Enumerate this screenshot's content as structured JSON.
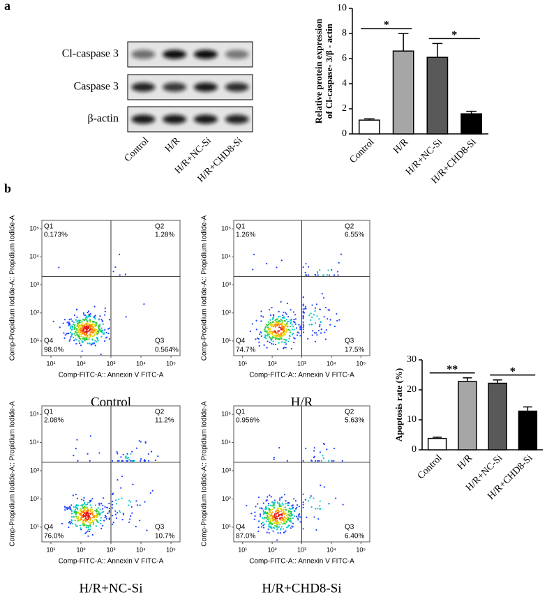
{
  "panels": [
    "a",
    "b"
  ],
  "western_blot": {
    "bands": [
      "Cl-caspase 3",
      "Caspase 3",
      "β-actin"
    ],
    "lanes": [
      "Control",
      "H/R",
      "H/R+NC-Si",
      "H/R+CHD8-Si"
    ]
  },
  "chart_data": [
    {
      "type": "bar",
      "ylabel": [
        "Relative protein expression",
        "of Cl-caspase- 3/β - actin"
      ],
      "categories": [
        "Control",
        "H/R",
        "H/R+NC-Si",
        "H/R+CHD8-Si"
      ],
      "values": [
        1.1,
        6.6,
        6.1,
        1.6
      ],
      "errors": [
        0.1,
        1.4,
        1.1,
        0.2
      ],
      "colors": [
        "#ffffff",
        "#a6a6a6",
        "#595959",
        "#000000"
      ],
      "ylim": [
        0,
        10
      ],
      "yticks": [
        0,
        2,
        4,
        6,
        8,
        10
      ],
      "significance": [
        {
          "between": [
            "Control",
            "H/R"
          ],
          "label": "*"
        },
        {
          "between": [
            "H/R+NC-Si",
            "H/R+CHD8-Si"
          ],
          "label": "*"
        }
      ]
    },
    {
      "type": "bar",
      "ylabel": [
        "Apoptosis rate (%)"
      ],
      "categories": [
        "Control",
        "H/R",
        "H/R+NC-Si",
        "H/R+CHD8-Si"
      ],
      "values": [
        3.8,
        22.8,
        22.2,
        12.9
      ],
      "errors": [
        0.4,
        1.2,
        1.1,
        1.4
      ],
      "colors": [
        "#ffffff",
        "#a6a6a6",
        "#595959",
        "#000000"
      ],
      "ylim": [
        0,
        30
      ],
      "yticks": [
        0,
        10,
        20,
        30
      ],
      "significance": [
        {
          "between": [
            "Control",
            "H/R"
          ],
          "label": "**"
        },
        {
          "between": [
            "H/R+NC-Si",
            "H/R+CHD8-Si"
          ],
          "label": "*"
        }
      ]
    },
    {
      "type": "flow",
      "title": "Control",
      "xlabel": "Comp-FITC-A:: Annexin V FITC-A",
      "ylabel": "Comp-Propidium Iodide-A:: Propidium Iodide-A",
      "xscale": "log",
      "yscale": "log",
      "xlim": [
        5,
        200000
      ],
      "ylim": [
        3,
        200000
      ],
      "xticks": [
        {
          "value": 10,
          "label": "10¹"
        },
        {
          "value": 100,
          "label": "10²"
        },
        {
          "value": 1000,
          "label": "10³"
        },
        {
          "value": 10000,
          "label": "10⁴"
        },
        {
          "value": 100000,
          "label": "10⁵"
        }
      ],
      "yticks": [
        {
          "value": 10,
          "label": "10¹"
        },
        {
          "value": 100,
          "label": "10²"
        },
        {
          "value": 1000,
          "label": "10³"
        },
        {
          "value": 10000,
          "label": "10⁴"
        },
        {
          "value": 100000,
          "label": "10⁵"
        }
      ],
      "gates": {
        "x": 1000,
        "y": 2000
      },
      "quadrants": [
        "Q1",
        "Q2",
        "Q3",
        "Q4"
      ],
      "quadrant_values": [
        0.173,
        1.28,
        0.564,
        98.0
      ],
      "quadrant_labels": [
        "0.173%",
        "1.28%",
        "0.564%",
        "98.0%"
      ]
    },
    {
      "type": "flow",
      "title": "H/R",
      "xlabel": "Comp-FITC-A:: Annexin V FITC-A",
      "ylabel": "Comp-Propidium Iodide-A:: Propidium Iodide-A",
      "xscale": "log",
      "yscale": "log",
      "xlim": [
        5,
        200000
      ],
      "ylim": [
        3,
        200000
      ],
      "xticks": [
        {
          "value": 10,
          "label": "10¹"
        },
        {
          "value": 100,
          "label": "10²"
        },
        {
          "value": 1000,
          "label": "10³"
        },
        {
          "value": 10000,
          "label": "10⁴"
        },
        {
          "value": 100000,
          "label": "10⁵"
        }
      ],
      "yticks": [
        {
          "value": 10,
          "label": "10¹"
        },
        {
          "value": 100,
          "label": "10²"
        },
        {
          "value": 1000,
          "label": "10³"
        },
        {
          "value": 10000,
          "label": "10⁴"
        },
        {
          "value": 100000,
          "label": "10⁵"
        }
      ],
      "gates": {
        "x": 1000,
        "y": 2000
      },
      "quadrants": [
        "Q1",
        "Q2",
        "Q3",
        "Q4"
      ],
      "quadrant_values": [
        1.26,
        6.55,
        17.5,
        74.7
      ],
      "quadrant_labels": [
        "1.26%",
        "6.55%",
        "17.5%",
        "74.7%"
      ]
    },
    {
      "type": "flow",
      "title": "H/R+NC-Si",
      "xlabel": "Comp-FITC-A:: Annexin V FITC-A",
      "ylabel": "Comp-Propidium Iodide-A:: Propidium Iodide-A",
      "xscale": "log",
      "yscale": "log",
      "xlim": [
        5,
        200000
      ],
      "ylim": [
        3,
        200000
      ],
      "xticks": [
        {
          "value": 10,
          "label": "10¹"
        },
        {
          "value": 100,
          "label": "10²"
        },
        {
          "value": 1000,
          "label": "10³"
        },
        {
          "value": 10000,
          "label": "10⁴"
        },
        {
          "value": 100000,
          "label": "10⁵"
        }
      ],
      "yticks": [
        {
          "value": 10,
          "label": "10¹"
        },
        {
          "value": 100,
          "label": "10²"
        },
        {
          "value": 1000,
          "label": "10³"
        },
        {
          "value": 10000,
          "label": "10⁴"
        },
        {
          "value": 100000,
          "label": "10⁵"
        }
      ],
      "gates": {
        "x": 1000,
        "y": 2000
      },
      "quadrants": [
        "Q1",
        "Q2",
        "Q3",
        "Q4"
      ],
      "quadrant_values": [
        2.08,
        11.2,
        10.7,
        76.0
      ],
      "quadrant_labels": [
        "2.08%",
        "11.2%",
        "10.7%",
        "76.0%"
      ]
    },
    {
      "type": "flow",
      "title": "H/R+CHD8-Si",
      "xlabel": "Comp-FITC-A:: Annexin V FITC-A",
      "ylabel": "Comp-Propidium Iodide-A:: Propidium Iodide-A",
      "xscale": "log",
      "yscale": "log",
      "xlim": [
        5,
        200000
      ],
      "ylim": [
        3,
        200000
      ],
      "xticks": [
        {
          "value": 10,
          "label": "10¹"
        },
        {
          "value": 100,
          "label": "10²"
        },
        {
          "value": 1000,
          "label": "10³"
        },
        {
          "value": 10000,
          "label": "10⁴"
        },
        {
          "value": 100000,
          "label": "10⁵"
        }
      ],
      "yticks": [
        {
          "value": 10,
          "label": "10¹"
        },
        {
          "value": 100,
          "label": "10²"
        },
        {
          "value": 1000,
          "label": "10³"
        },
        {
          "value": 10000,
          "label": "10⁴"
        },
        {
          "value": 100000,
          "label": "10⁵"
        }
      ],
      "gates": {
        "x": 1000,
        "y": 2000
      },
      "quadrants": [
        "Q1",
        "Q2",
        "Q3",
        "Q4"
      ],
      "quadrant_values": [
        0.956,
        5.63,
        6.4,
        87.0
      ],
      "quadrant_labels": [
        "0.956%",
        "5.63%",
        "6.40%",
        "87.0%"
      ]
    }
  ]
}
